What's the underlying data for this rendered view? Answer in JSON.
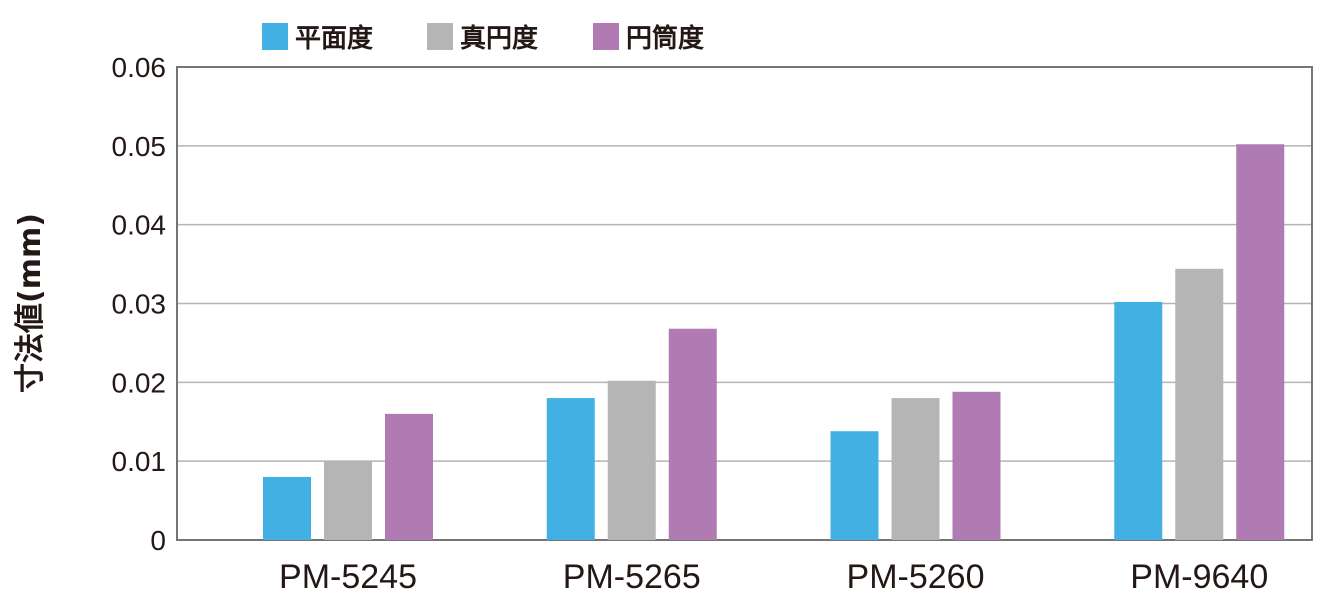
{
  "chart_data": {
    "type": "bar",
    "title": "",
    "xlabel": "",
    "ylabel": "寸法値(mm)",
    "categories": [
      "PM-5245",
      "PM-5265",
      "PM-5260",
      "PM-9640"
    ],
    "series": [
      {
        "name": "平面度",
        "color": "#42b0e3",
        "values": [
          0.008,
          0.018,
          0.0138,
          0.0302
        ]
      },
      {
        "name": "真円度",
        "color": "#b5b5b6",
        "values": [
          0.01,
          0.0202,
          0.018,
          0.0344
        ]
      },
      {
        "name": "円筒度",
        "color": "#b07ab2",
        "values": [
          0.016,
          0.0268,
          0.0188,
          0.0502
        ]
      }
    ],
    "yticks": [
      "0",
      "0.01",
      "0.02",
      "0.03",
      "0.04",
      "0.05",
      "0.06"
    ],
    "ylim": [
      0,
      0.06
    ],
    "grid": true,
    "legend_position": "top-left"
  }
}
